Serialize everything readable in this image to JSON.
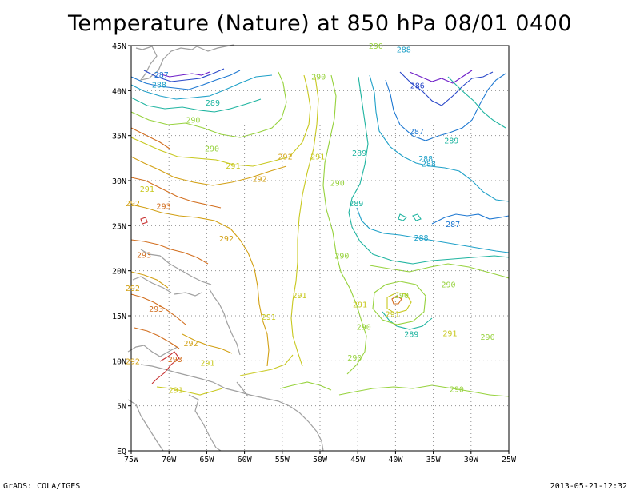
{
  "title": "Temperature (Nature) at 850 hPa 08/01 0400",
  "footer": {
    "left": "GrADS: COLA/IGES",
    "right": "2013-05-21-12:32"
  },
  "map": {
    "lon_range": [
      -75,
      -25
    ],
    "lat_range": [
      0,
      45
    ],
    "lon_ticks": [
      "75W",
      "70W",
      "65W",
      "60W",
      "55W",
      "50W",
      "45W",
      "40W",
      "35W",
      "30W",
      "25W"
    ],
    "lat_ticks": [
      "EQ",
      "5N",
      "10N",
      "15N",
      "20N",
      "25N",
      "30N",
      "35N",
      "40N",
      "45N"
    ],
    "grid": true,
    "colors": {
      "293": "#d26e1e",
      "292": "#d2a014",
      "291": "#c8c81e",
      "290": "#96d23c",
      "289": "#1eb4a0",
      "288": "#1ea0c8",
      "287": "#1e78d2",
      "286": "#2846c8",
      "285": "#6e1ec8",
      "294": "#c83232",
      "coast": "#a0a0a0",
      "grid": "#909090"
    },
    "contour_labels": [
      {
        "text": "288",
        "lon": -71.3,
        "lat": 40.7,
        "level": "288"
      },
      {
        "text": "289",
        "lon": -64.2,
        "lat": 38.7,
        "level": "289"
      },
      {
        "text": "290",
        "lon": -66.8,
        "lat": 36.8,
        "level": "290"
      },
      {
        "text": "290",
        "lon": -64.3,
        "lat": 33.6,
        "level": "290"
      },
      {
        "text": "291",
        "lon": -61.5,
        "lat": 31.7,
        "level": "291"
      },
      {
        "text": "292",
        "lon": -54.6,
        "lat": 32.7,
        "level": "292"
      },
      {
        "text": "291",
        "lon": -50.3,
        "lat": 32.7,
        "level": "291"
      },
      {
        "text": "292",
        "lon": -58.0,
        "lat": 30.2,
        "level": "292"
      },
      {
        "text": "290",
        "lon": -47.7,
        "lat": 29.8,
        "level": "290"
      },
      {
        "text": "291",
        "lon": -72.9,
        "lat": 29.1,
        "level": "291"
      },
      {
        "text": "292",
        "lon": -74.8,
        "lat": 27.5,
        "level": "292"
      },
      {
        "text": "293",
        "lon": -70.7,
        "lat": 27.2,
        "level": "293"
      },
      {
        "text": "292",
        "lon": -62.4,
        "lat": 23.6,
        "level": "292"
      },
      {
        "text": "293",
        "lon": -73.3,
        "lat": 21.8,
        "level": "293"
      },
      {
        "text": "290",
        "lon": -47.1,
        "lat": 21.7,
        "level": "290"
      },
      {
        "text": "292",
        "lon": -74.8,
        "lat": 18.1,
        "level": "292"
      },
      {
        "text": "291",
        "lon": -52.7,
        "lat": 17.3,
        "level": "291"
      },
      {
        "text": "293",
        "lon": -71.7,
        "lat": 15.8,
        "level": "293"
      },
      {
        "text": "291",
        "lon": -56.8,
        "lat": 14.9,
        "level": "291"
      },
      {
        "text": "292",
        "lon": -67.1,
        "lat": 12.0,
        "level": "292"
      },
      {
        "text": "292",
        "lon": -74.8,
        "lat": 10.0,
        "level": "292"
      },
      {
        "text": "293",
        "lon": -69.2,
        "lat": 10.2,
        "level": "293"
      },
      {
        "text": "291",
        "lon": -64.9,
        "lat": 9.8,
        "level": "291"
      },
      {
        "text": "291",
        "lon": -69.1,
        "lat": 6.8,
        "level": "291"
      },
      {
        "text": "290",
        "lon": -42.6,
        "lat": 45.0,
        "level": "290"
      },
      {
        "text": "290",
        "lon": -50.2,
        "lat": 41.6,
        "level": "290"
      },
      {
        "text": "288",
        "lon": -38.9,
        "lat": 44.6,
        "level": "288"
      },
      {
        "text": "287",
        "lon": -71.0,
        "lat": 41.8,
        "level": "287"
      },
      {
        "text": "286",
        "lon": -37.1,
        "lat": 40.6,
        "level": "286"
      },
      {
        "text": "289",
        "lon": -44.8,
        "lat": 33.1,
        "level": "289"
      },
      {
        "text": "287",
        "lon": -37.2,
        "lat": 35.5,
        "level": "287"
      },
      {
        "text": "289",
        "lon": -32.6,
        "lat": 34.5,
        "level": "289"
      },
      {
        "text": "288",
        "lon": -36.0,
        "lat": 32.5,
        "level": "288"
      },
      {
        "text": "288",
        "lon": -35.6,
        "lat": 31.9,
        "level": "288"
      },
      {
        "text": "289",
        "lon": -45.2,
        "lat": 27.5,
        "level": "289"
      },
      {
        "text": "287",
        "lon": -32.4,
        "lat": 25.2,
        "level": "287"
      },
      {
        "text": "288",
        "lon": -36.6,
        "lat": 23.7,
        "level": "288"
      },
      {
        "text": "290",
        "lon": -33.0,
        "lat": 18.5,
        "level": "290"
      },
      {
        "text": "290",
        "lon": -39.2,
        "lat": 17.3,
        "level": "290"
      },
      {
        "text": "291",
        "lon": -44.7,
        "lat": 16.3,
        "level": "291"
      },
      {
        "text": "291",
        "lon": -40.4,
        "lat": 15.2,
        "level": "291"
      },
      {
        "text": "290",
        "lon": -44.2,
        "lat": 13.8,
        "level": "290"
      },
      {
        "text": "289",
        "lon": -37.9,
        "lat": 13.0,
        "level": "289"
      },
      {
        "text": "291",
        "lon": -32.8,
        "lat": 13.1,
        "level": "291"
      },
      {
        "text": "290",
        "lon": -27.8,
        "lat": 12.7,
        "level": "290"
      },
      {
        "text": "290",
        "lon": -45.4,
        "lat": 10.4,
        "level": "290"
      },
      {
        "text": "290",
        "lon": -31.9,
        "lat": 6.9,
        "level": "290"
      }
    ]
  }
}
